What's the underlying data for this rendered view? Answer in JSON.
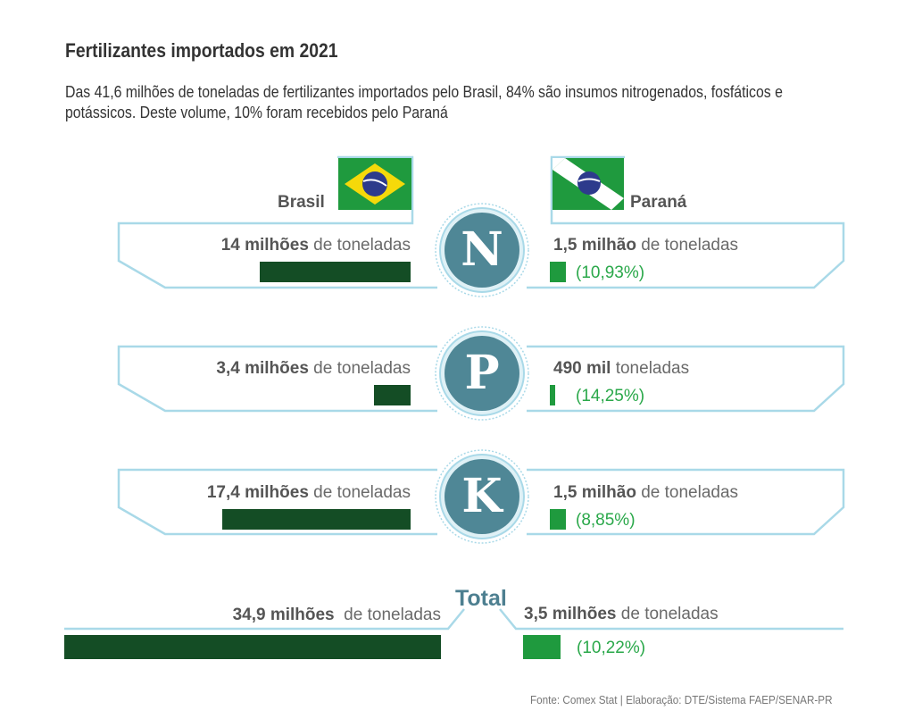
{
  "title": "Fertilizantes importados em 2021",
  "subtitle": "Das 41,6 milhões de toneladas de fertilizantes importados pelo Brasil, 84% são insumos nitrogenados, fosfáticos e potássicos. Deste volume, 10% foram recebidos pelo Paraná",
  "colors": {
    "brasil_bar": "#144d25",
    "parana_bar": "#1f9a3e",
    "frame": "#a9d9e8",
    "circle": "#4f8796"
  },
  "chart_data": {
    "type": "bar",
    "title": "Fertilizantes importados em 2021",
    "unit": "milhões de toneladas",
    "categories": [
      "N",
      "P",
      "K",
      "Total"
    ],
    "series": [
      {
        "name": "Brasil",
        "values": [
          14,
          3.4,
          17.4,
          34.9
        ]
      },
      {
        "name": "Paraná",
        "values": [
          1.5,
          0.49,
          1.5,
          3.5
        ]
      }
    ],
    "parana_share_pct": [
      10.93,
      14.25,
      8.85,
      10.22
    ]
  },
  "headers": {
    "brasil": "Brasil",
    "parana": "Paraná",
    "total": "Total"
  },
  "rows": [
    {
      "letter": "N",
      "brasil_bold": "14 milhões",
      "brasil_rest": " de toneladas",
      "parana_bold": "1,5 milhão",
      "parana_rest": " de toneladas",
      "pct": "(10,93%)"
    },
    {
      "letter": "P",
      "brasil_bold": "3,4 milhões",
      "brasil_rest": " de toneladas",
      "parana_bold": "490 mil",
      "parana_rest": " toneladas",
      "pct": "(14,25%)"
    },
    {
      "letter": "K",
      "brasil_bold": "17,4 milhões",
      "brasil_rest": " de toneladas",
      "parana_bold": "1,5 milhão",
      "parana_rest": " de toneladas",
      "pct": "(8,85%)"
    }
  ],
  "total": {
    "brasil_bold": "34,9 milhões",
    "brasil_rest": "  de toneladas",
    "parana_bold": "3,5 milhões",
    "parana_rest": " de toneladas",
    "pct": "(10,22%)"
  },
  "source": "Fonte: Comex Stat | Elaboração: DTE/Sistema FAEP/SENAR-PR"
}
